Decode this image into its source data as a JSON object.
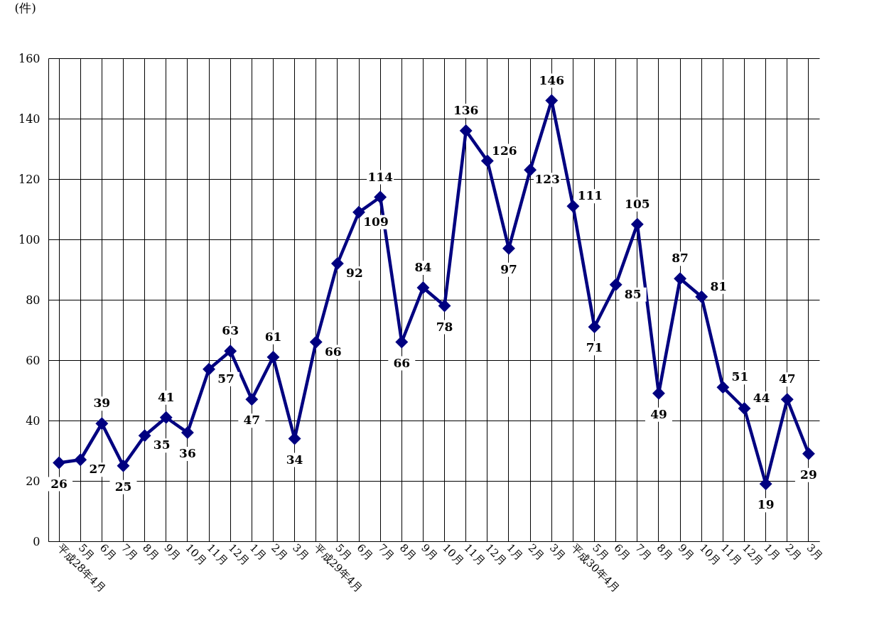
{
  "chart_data": {
    "type": "line",
    "ylabel": "(件)",
    "categories": [
      "平成28年4月",
      "5月",
      "6月",
      "7月",
      "8月",
      "9月",
      "10月",
      "11月",
      "12月",
      "1月",
      "2月",
      "3月",
      "平成29年4月",
      "5月",
      "6月",
      "7月",
      "8月",
      "9月",
      "10月",
      "11月",
      "12月",
      "1月",
      "2月",
      "3月",
      "平成30年4月",
      "5月",
      "6月",
      "7月",
      "8月",
      "9月",
      "10月",
      "11月",
      "12月",
      "1月",
      "2月",
      "3月"
    ],
    "series": [
      {
        "color": "#000080",
        "values": [
          26,
          27,
          39,
          25,
          35,
          41,
          36,
          57,
          63,
          47,
          61,
          34,
          66,
          92,
          109,
          114,
          66,
          84,
          78,
          136,
          126,
          97,
          123,
          146,
          111,
          71,
          85,
          105,
          49,
          87,
          81,
          51,
          44,
          19,
          47,
          29
        ]
      }
    ],
    "ylim": [
      0,
      160
    ],
    "yticks": [
      0,
      20,
      40,
      60,
      80,
      100,
      120,
      140,
      160
    ],
    "grid": true,
    "marker": "diamond",
    "line_style": "solid",
    "data_labels": true,
    "legend": false
  }
}
